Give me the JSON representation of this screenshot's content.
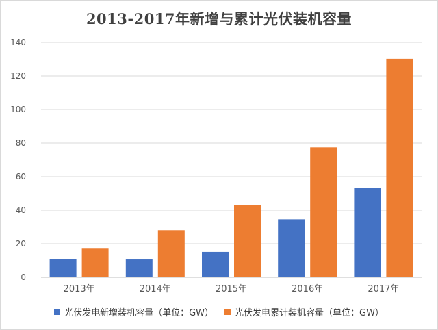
{
  "chart_data": {
    "type": "bar",
    "title": "2013-2017年新增与累计光伏装机容量",
    "categories": [
      "2013年",
      "2014年",
      "2015年",
      "2016年",
      "2017年"
    ],
    "series": [
      {
        "name": "光伏发电新增装机容量（单位：GW）",
        "values": [
          10.95,
          10.6,
          15.13,
          34.54,
          53.06
        ],
        "color": "#4472c4"
      },
      {
        "name": "光伏发电累计装机容量（单位：GW）",
        "values": [
          17.45,
          28.05,
          43.18,
          77.42,
          130.25
        ],
        "color": "#ed7d31"
      }
    ],
    "ylim": [
      0,
      140
    ],
    "yticks": [
      0,
      20,
      40,
      60,
      80,
      100,
      120,
      140
    ],
    "grid": true,
    "legend_position": "bottom"
  }
}
